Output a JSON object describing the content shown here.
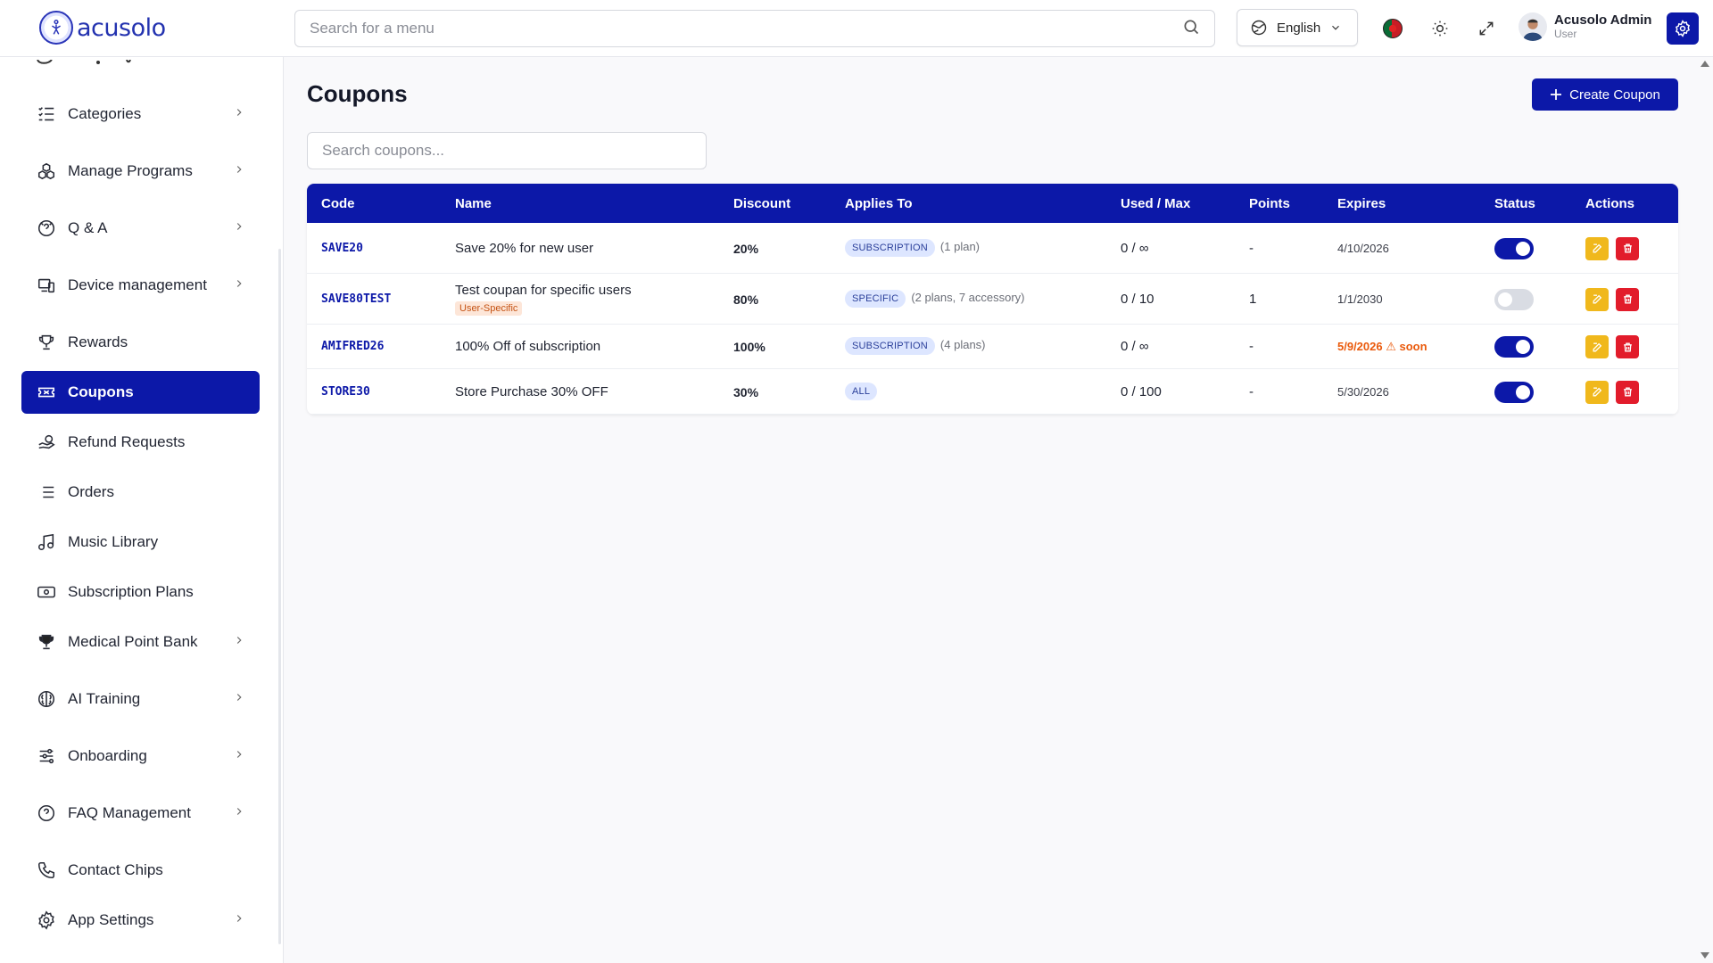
{
  "header": {
    "brand": "acusolo",
    "search_placeholder": "Search for a menu",
    "language": "English",
    "user_name": "Acusolo Admin",
    "user_role": "User"
  },
  "sidebar": {
    "items": [
      {
        "label": "Categories",
        "icon": "list-check-icon",
        "chevron": true
      },
      {
        "label": "Manage Programs",
        "icon": "cubes-icon",
        "chevron": true
      },
      {
        "label": "Q & A",
        "icon": "chat-question-icon",
        "chevron": true
      },
      {
        "label": "Device management",
        "icon": "devices-icon",
        "chevron": true
      },
      {
        "label": "Rewards",
        "icon": "trophy-icon",
        "chevron": false
      },
      {
        "label": "Coupons",
        "icon": "ticket-icon",
        "chevron": false,
        "active": true
      },
      {
        "label": "Refund Requests",
        "icon": "hand-coin-icon",
        "chevron": false
      },
      {
        "label": "Orders",
        "icon": "list-icon",
        "chevron": false
      },
      {
        "label": "Music Library",
        "icon": "music-note-icon",
        "chevron": false
      },
      {
        "label": "Subscription Plans",
        "icon": "cash-icon",
        "chevron": false
      },
      {
        "label": "Medical Point Bank",
        "icon": "trophy-filled-icon",
        "chevron": true
      },
      {
        "label": "AI Training",
        "icon": "brain-icon",
        "chevron": true
      },
      {
        "label": "Onboarding",
        "icon": "sliders-icon",
        "chevron": true
      },
      {
        "label": "FAQ Management",
        "icon": "question-circle-icon",
        "chevron": true
      },
      {
        "label": "Contact Chips",
        "icon": "phone-icon",
        "chevron": false
      },
      {
        "label": "App Settings",
        "icon": "gear-icon",
        "chevron": true
      }
    ]
  },
  "main": {
    "title": "Coupons",
    "create_label": "Create Coupon",
    "search_placeholder": "Search coupons...",
    "columns": [
      "Code",
      "Name",
      "Discount",
      "Applies To",
      "Used / Max",
      "Points",
      "Expires",
      "Status",
      "Actions"
    ],
    "rows": [
      {
        "code": "SAVE20",
        "name": "Save 20% for new user",
        "tag": "",
        "discount": "20%",
        "applies": "SUBSCRIPTION",
        "applies_extra": "(1 plan)",
        "used": "0 / ∞",
        "points": "-",
        "expires": "4/10/2026",
        "expires_note": "",
        "status": true
      },
      {
        "code": "SAVE80TEST",
        "name": "Test coupan for specific users",
        "tag": "User-Specific",
        "discount": "80%",
        "applies": "SPECIFIC",
        "applies_extra": "(2 plans, 7 accessory)",
        "used": "0 / 10",
        "points": "1",
        "expires": "1/1/2030",
        "expires_note": "",
        "status": false
      },
      {
        "code": "AMIFRED26",
        "name": "100% Off of subscription",
        "tag": "",
        "discount": "100%",
        "applies": "SUBSCRIPTION",
        "applies_extra": "(4 plans)",
        "used": "0 / ∞",
        "points": "-",
        "expires": "5/9/2026",
        "expires_note": "⚠ soon",
        "status": true
      },
      {
        "code": "STORE30",
        "name": "Store Purchase 30% OFF",
        "tag": "",
        "discount": "30%",
        "applies": "ALL",
        "applies_extra": "",
        "used": "0 / 100",
        "points": "-",
        "expires": "5/30/2026",
        "expires_note": "",
        "status": true
      }
    ]
  },
  "colors": {
    "primary": "#0c18a8",
    "edit": "#f0b81c",
    "delete": "#e21c2b",
    "badge_bg": "#dde6ff",
    "soon": "#ea5a0c"
  }
}
